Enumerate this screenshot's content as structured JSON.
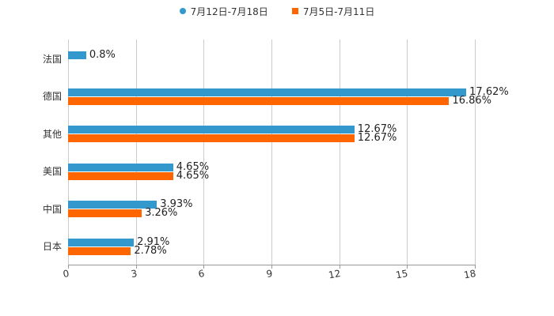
{
  "legend": [
    {
      "label": "7月12日-7月18日",
      "color": "#3399cc",
      "shape": "circle"
    },
    {
      "label": "7月5日-7月11日",
      "color": "#ff6600",
      "shape": "square"
    }
  ],
  "chart_data": {
    "type": "bar",
    "orientation": "horizontal",
    "title": "",
    "xlabel": "",
    "ylabel": "",
    "xlim": [
      0,
      18
    ],
    "x_ticks": [
      "0",
      "3",
      "6",
      "9",
      "12",
      "15",
      "18"
    ],
    "grid": true,
    "legend_position": "top",
    "categories": [
      "法国",
      "德国",
      "其他",
      "美国",
      "中国",
      "日本"
    ],
    "series": [
      {
        "name": "7月12日-7月18日",
        "color": "#3399cc",
        "values": [
          0.8,
          17.62,
          12.67,
          4.65,
          3.93,
          2.91
        ],
        "labels": [
          "0.8%",
          "17.62%",
          "12.67%",
          "4.65%",
          "3.93%",
          "2.91%"
        ]
      },
      {
        "name": "7月5日-7月11日",
        "color": "#ff6600",
        "values": [
          null,
          16.86,
          12.67,
          4.65,
          3.26,
          2.78
        ],
        "labels": [
          "",
          "16.86%",
          "12.67%",
          "4.65%",
          "3.26%",
          "2.78%"
        ]
      }
    ]
  }
}
